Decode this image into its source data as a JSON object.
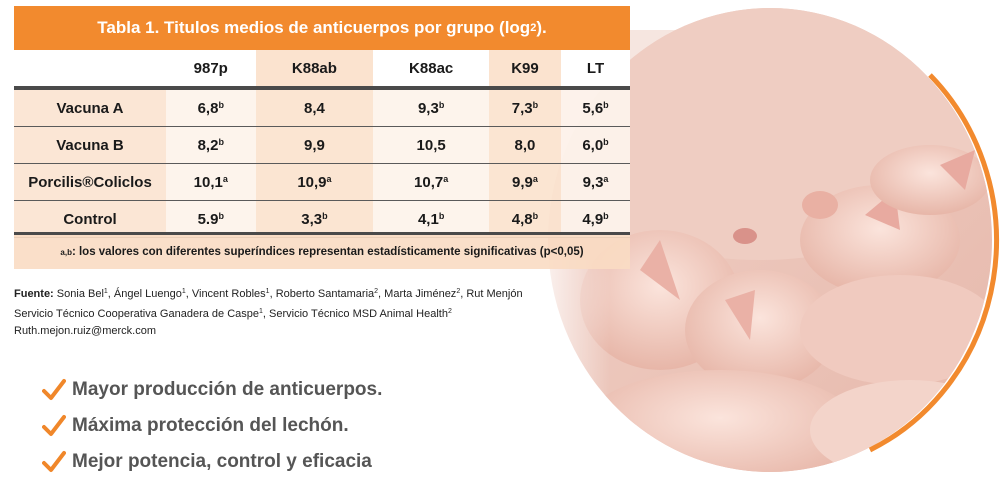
{
  "table": {
    "title": "Tabla 1. Titulos medios de anticuerpos por grupo (log",
    "title_sub": "2",
    "title_end": ").",
    "columns": [
      "987p",
      "K88ab",
      "K88ac",
      "K99",
      "LT"
    ],
    "rows": [
      {
        "label": "Vacuna A",
        "cells": [
          {
            "v": "6,8",
            "s": "b"
          },
          {
            "v": "8,4",
            "s": ""
          },
          {
            "v": "9,3",
            "s": "b"
          },
          {
            "v": "7,3",
            "s": "b"
          },
          {
            "v": "5,6",
            "s": "b"
          }
        ]
      },
      {
        "label": "Vacuna B",
        "cells": [
          {
            "v": "8,2",
            "s": "b"
          },
          {
            "v": "9,9",
            "s": ""
          },
          {
            "v": "10,5",
            "s": ""
          },
          {
            "v": "8,0",
            "s": ""
          },
          {
            "v": "6,0",
            "s": "b"
          }
        ]
      },
      {
        "label": "Porcilis®Coliclos",
        "cells": [
          {
            "v": "10,1",
            "s": "a"
          },
          {
            "v": "10,9",
            "s": "a"
          },
          {
            "v": "10,7",
            "s": "a"
          },
          {
            "v": "9,9",
            "s": "a"
          },
          {
            "v": "9,3",
            "s": "a"
          }
        ]
      },
      {
        "label": "Control",
        "cells": [
          {
            "v": "5.9",
            "s": "b"
          },
          {
            "v": "3,3",
            "s": "b"
          },
          {
            "v": "4,1",
            "s": "b"
          },
          {
            "v": "4,8",
            "s": "b"
          },
          {
            "v": "4,9",
            "s": "b"
          }
        ]
      }
    ],
    "note_sup": "a,b",
    "note": ": los valores con diferentes superíndices representan estadísticamente significativas (p<0,05)"
  },
  "source": {
    "label": "Fuente:",
    "authors": [
      {
        "name": "Sonia Bel",
        "sup": "1"
      },
      {
        "name": "Ángel Luengo",
        "sup": "1"
      },
      {
        "name": "Vincent Robles",
        "sup": "1"
      },
      {
        "name": "Roberto Santamaria",
        "sup": "2"
      },
      {
        "name": "Marta Jiménez",
        "sup": "2"
      },
      {
        "name": "Rut Menjón",
        "sup": ""
      }
    ],
    "line2a": "Servicio Técnico Cooperativa Ganadera de Caspe",
    "line2a_sup": "1",
    "line2b": ", Servicio Técnico MSD Animal Health",
    "line2b_sup": "2",
    "email": "Ruth.mejon.ruiz@merck.com"
  },
  "bullets": [
    "Mayor producción de anticuerpos.",
    "Máxima protección del lechón.",
    "Mejor potencia, control y eficacia"
  ],
  "colors": {
    "accent": "#f28a2e",
    "check": "#f0872a",
    "bullet_text": "#555555"
  }
}
